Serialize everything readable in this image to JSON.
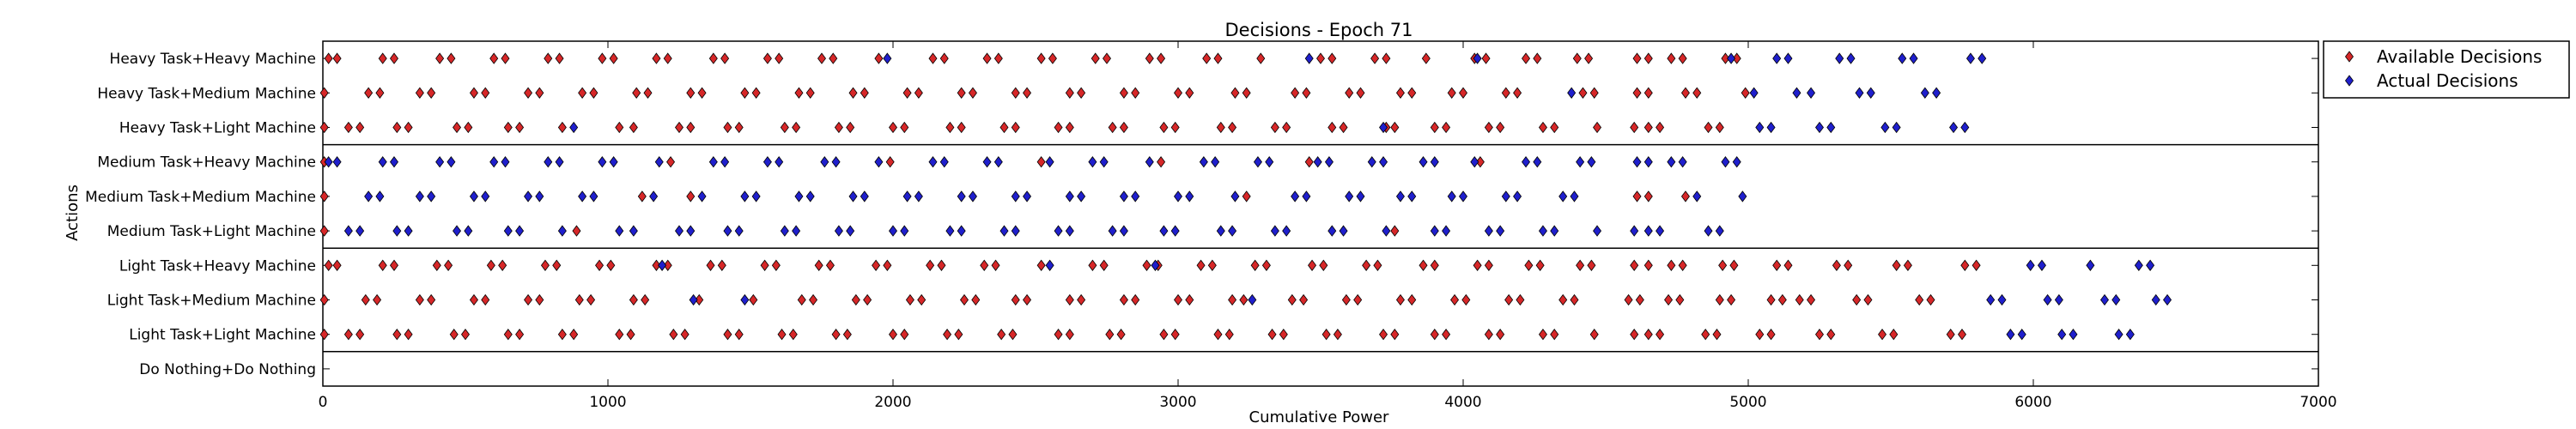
{
  "chart_data": {
    "type": "scatter",
    "title": "Decisions - Epoch 71",
    "xlabel": "Cumulative Power",
    "ylabel": "Actions",
    "xlim": [
      0,
      7000
    ],
    "xticks": [
      0,
      1000,
      2000,
      3000,
      4000,
      5000,
      6000,
      7000
    ],
    "categories": [
      "Heavy Task+Heavy Machine",
      "Heavy Task+Medium Machine",
      "Heavy Task+Light Machine",
      "Medium Task+Heavy Machine",
      "Medium Task+Medium Machine",
      "Medium Task+Light Machine",
      "Light Task+Heavy Machine",
      "Light Task+Medium Machine",
      "Light Task+Light Machine",
      "Do Nothing+Do Nothing"
    ],
    "group_separators_after": [
      "Heavy Task+Light Machine",
      "Medium Task+Light Machine",
      "Light Task+Light Machine"
    ],
    "legend": {
      "position": "outside-right-top",
      "entries": [
        {
          "name": "Available Decisions",
          "color": "#d62728",
          "marker": "diamond"
        },
        {
          "name": "Actual Decisions",
          "color": "#1f1fcc",
          "marker": "diamond"
        }
      ]
    },
    "series": [
      {
        "name": "Available Decisions",
        "color": "#d62728",
        "points": [
          {
            "category": "Heavy Task+Heavy Machine",
            "x": [
              20,
              50,
              210,
              250,
              410,
              450,
              600,
              640,
              790,
              830,
              980,
              1020,
              1170,
              1210,
              1370,
              1410,
              1560,
              1600,
              1750,
              1790,
              1950,
              2140,
              2180,
              2330,
              2370,
              2520,
              2560,
              2710,
              2750,
              2900,
              2940,
              3100,
              3140,
              3290,
              3500,
              3540,
              3690,
              3730,
              3870,
              4040,
              4080,
              4220,
              4260,
              4400,
              4440,
              4610,
              4650,
              4730,
              4770,
              4920,
              4960
            ]
          },
          {
            "category": "Heavy Task+Medium Machine",
            "x": [
              5,
              160,
              200,
              340,
              380,
              530,
              570,
              720,
              760,
              910,
              950,
              1100,
              1140,
              1290,
              1330,
              1480,
              1520,
              1670,
              1710,
              1860,
              1900,
              2050,
              2090,
              2240,
              2280,
              2430,
              2470,
              2620,
              2660,
              2810,
              2850,
              3000,
              3040,
              3200,
              3240,
              3410,
              3450,
              3600,
              3640,
              3780,
              3820,
              3960,
              4000,
              4150,
              4190,
              4420,
              4460,
              4610,
              4650,
              4780,
              4820,
              4990
            ]
          },
          {
            "category": "Heavy Task+Light Machine",
            "x": [
              5,
              90,
              130,
              260,
              300,
              470,
              510,
              650,
              690,
              840,
              1040,
              1090,
              1250,
              1290,
              1420,
              1460,
              1620,
              1660,
              1810,
              1850,
              2000,
              2040,
              2200,
              2240,
              2390,
              2430,
              2580,
              2620,
              2770,
              2810,
              2950,
              2990,
              3150,
              3190,
              3340,
              3380,
              3540,
              3580,
              3730,
              3760,
              3900,
              3940,
              4090,
              4130,
              4280,
              4320,
              4470,
              4600,
              4650,
              4690,
              4860,
              4900
            ]
          },
          {
            "category": "Medium Task+Heavy Machine",
            "x": [
              5,
              1220,
              1990,
              2520,
              2940,
              3460,
              4060
            ]
          },
          {
            "category": "Medium Task+Medium Machine",
            "x": [
              5,
              1120,
              1290,
              3240,
              4610,
              4650,
              4780
            ]
          },
          {
            "category": "Medium Task+Light Machine",
            "x": [
              5,
              890,
              3760
            ]
          },
          {
            "category": "Light Task+Heavy Machine",
            "x": [
              20,
              50,
              210,
              250,
              400,
              440,
              590,
              630,
              780,
              820,
              970,
              1010,
              1170,
              1210,
              1360,
              1400,
              1550,
              1590,
              1740,
              1780,
              1940,
              1980,
              2130,
              2170,
              2320,
              2360,
              2520,
              2700,
              2740,
              2890,
              2930,
              3080,
              3120,
              3270,
              3310,
              3470,
              3510,
              3660,
              3700,
              3860,
              3900,
              4050,
              4090,
              4230,
              4270,
              4410,
              4450,
              4600,
              4650,
              4730,
              4770,
              4910,
              4950,
              5100,
              5140,
              5310,
              5350,
              5520,
              5560,
              5760,
              5800
            ]
          },
          {
            "category": "Light Task+Medium Machine",
            "x": [
              5,
              150,
              190,
              340,
              380,
              530,
              570,
              720,
              760,
              900,
              940,
              1090,
              1130,
              1320,
              1510,
              1680,
              1720,
              1870,
              1910,
              2060,
              2100,
              2250,
              2290,
              2430,
              2470,
              2620,
              2660,
              2810,
              2850,
              3000,
              3040,
              3190,
              3230,
              3400,
              3440,
              3590,
              3630,
              3780,
              3820,
              3970,
              4010,
              4160,
              4200,
              4350,
              4390,
              4580,
              4620,
              4720,
              4760,
              4900,
              4940,
              5080,
              5120,
              5180,
              5220,
              5380,
              5420,
              5600,
              5640
            ]
          },
          {
            "category": "Light Task+Light Machine",
            "x": [
              5,
              90,
              130,
              260,
              300,
              460,
              500,
              650,
              690,
              840,
              880,
              1040,
              1080,
              1230,
              1270,
              1420,
              1460,
              1610,
              1650,
              1800,
              1840,
              2000,
              2040,
              2190,
              2230,
              2380,
              2420,
              2580,
              2620,
              2760,
              2800,
              2950,
              2990,
              3140,
              3180,
              3330,
              3370,
              3520,
              3560,
              3720,
              3760,
              3900,
              3940,
              4090,
              4130,
              4280,
              4320,
              4460,
              4600,
              4650,
              4690,
              4850,
              4890,
              5040,
              5080,
              5250,
              5290,
              5470,
              5510,
              5710,
              5750
            ]
          }
        ]
      },
      {
        "name": "Actual Decisions",
        "color": "#1f1fcc",
        "points": [
          {
            "category": "Heavy Task+Heavy Machine",
            "x": [
              1980,
              3460,
              4050,
              4940,
              5100,
              5140,
              5320,
              5360,
              5540,
              5580,
              5780,
              5820
            ]
          },
          {
            "category": "Heavy Task+Medium Machine",
            "x": [
              4380,
              5020,
              5170,
              5220,
              5390,
              5430,
              5620,
              5660
            ]
          },
          {
            "category": "Heavy Task+Light Machine",
            "x": [
              880,
              3720,
              5040,
              5080,
              5250,
              5290,
              5480,
              5520,
              5720,
              5760
            ]
          },
          {
            "category": "Medium Task+Heavy Machine",
            "x": [
              20,
              50,
              210,
              250,
              410,
              450,
              600,
              640,
              790,
              830,
              980,
              1020,
              1180,
              1370,
              1410,
              1560,
              1600,
              1760,
              1800,
              1950,
              2140,
              2180,
              2330,
              2370,
              2550,
              2700,
              2740,
              2900,
              3090,
              3130,
              3280,
              3320,
              3490,
              3530,
              3680,
              3720,
              3860,
              3900,
              4040,
              4220,
              4260,
              4410,
              4450,
              4610,
              4650,
              4730,
              4770,
              4920,
              4960
            ]
          },
          {
            "category": "Medium Task+Medium Machine",
            "x": [
              160,
              200,
              340,
              380,
              530,
              570,
              720,
              760,
              910,
              950,
              1160,
              1330,
              1480,
              1520,
              1670,
              1710,
              1860,
              1900,
              2050,
              2090,
              2240,
              2280,
              2430,
              2470,
              2620,
              2660,
              2810,
              2850,
              3000,
              3040,
              3200,
              3410,
              3450,
              3600,
              3640,
              3780,
              3820,
              3960,
              4000,
              4150,
              4190,
              4350,
              4390,
              4820,
              4980
            ]
          },
          {
            "category": "Medium Task+Light Machine",
            "x": [
              90,
              130,
              260,
              300,
              470,
              510,
              650,
              690,
              840,
              1040,
              1090,
              1250,
              1290,
              1420,
              1460,
              1620,
              1660,
              1810,
              1850,
              2000,
              2040,
              2200,
              2240,
              2390,
              2430,
              2580,
              2620,
              2770,
              2810,
              2950,
              2990,
              3150,
              3190,
              3340,
              3380,
              3540,
              3580,
              3730,
              3900,
              3940,
              4090,
              4130,
              4280,
              4320,
              4470,
              4600,
              4650,
              4690,
              4860,
              4900
            ]
          },
          {
            "category": "Light Task+Heavy Machine",
            "x": [
              1190,
              2550,
              2920,
              5990,
              6030,
              6200,
              6370,
              6410
            ]
          },
          {
            "category": "Light Task+Medium Machine",
            "x": [
              1300,
              1480,
              3260,
              5850,
              5890,
              6050,
              6090,
              6250,
              6290,
              6430,
              6470
            ]
          },
          {
            "category": "Light Task+Light Machine",
            "x": [
              5920,
              5960,
              6100,
              6140,
              6300,
              6340
            ]
          }
        ]
      }
    ]
  }
}
